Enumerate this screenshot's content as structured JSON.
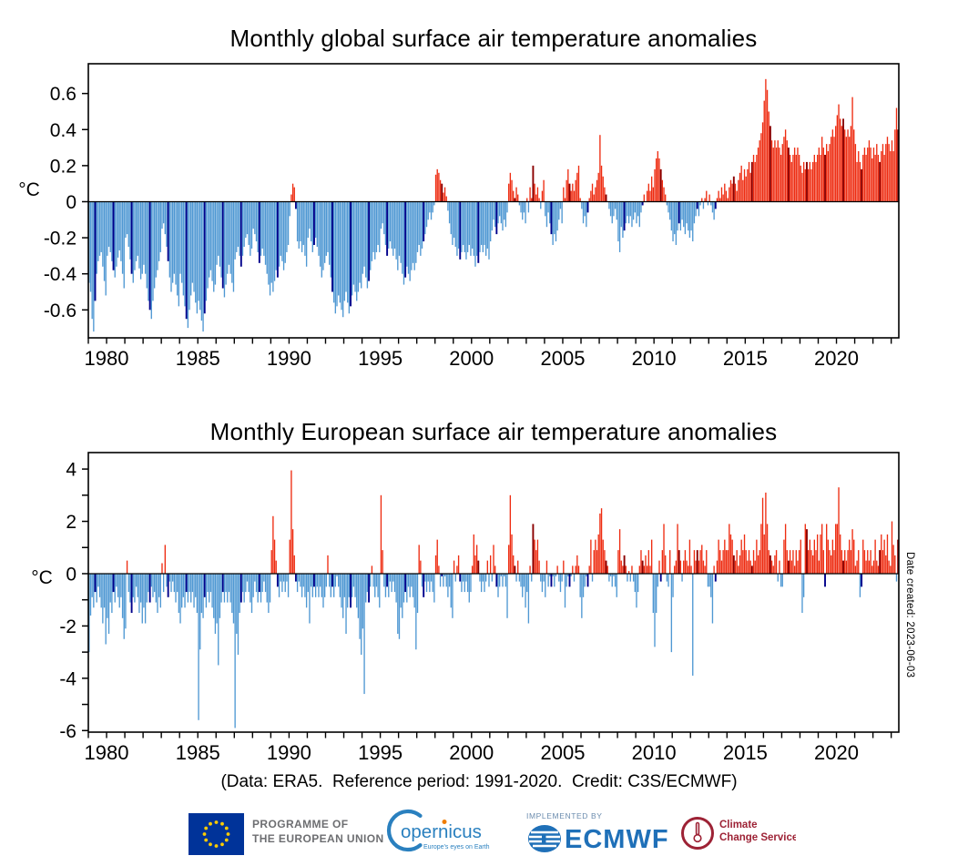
{
  "caption": "(Data: ERA5.  Reference period: 1991-2020.  Credit: C3S/ECMWF)",
  "date_note": "Date created: 2023-06-03",
  "colors": {
    "positive": "#ee2c11",
    "positive_highlight": "#8b0000",
    "negative": "#4f98d3",
    "negative_highlight": "#00008b",
    "axis": "#000000",
    "eu_flag_blue": "#003399",
    "eu_star_yellow": "#ffcc00",
    "logo_text_gray": "#6d6e71",
    "copernicus_blue": "#2a80bf",
    "copernicus_dot_orange": "#ef7d00",
    "ecmwf_blue": "#1f70b8",
    "implemented_by_gray_blue": "#6b8cae",
    "c3s_maroon": "#9d2235"
  },
  "footer": {
    "eu": {
      "line1": "PROGRAMME OF",
      "line2": "THE EUROPEAN UNION"
    },
    "copernicus": {
      "name": "opernicus",
      "tagline": "Europe's eyes on Earth"
    },
    "ecmwf": {
      "implemented_by": "IMPLEMENTED BY",
      "name": "ECMWF"
    },
    "c3s": {
      "line1": "Climate",
      "line2": "Change Service"
    }
  },
  "chart_data": [
    {
      "type": "bar",
      "title": "Monthly global surface air temperature anomalies",
      "ylabel": "°C",
      "x_range": [
        "1979-01",
        "2023-05"
      ],
      "x_start_year": 1979,
      "x_end_year": 2023,
      "xtick_years": [
        1980,
        1985,
        1990,
        1995,
        2000,
        2005,
        2010,
        2015,
        2020
      ],
      "yticks": [
        0.6,
        0.4,
        0.2,
        0,
        -0.2,
        -0.4,
        -0.6
      ],
      "ytick_labels": [
        "0.6",
        "0.4",
        "0.2",
        "0",
        "-0.2",
        "-0.4",
        "-0.6"
      ],
      "yticks_all": [
        0.6,
        0.4,
        0.2,
        0,
        -0.2,
        -0.4,
        -0.6
      ],
      "ylim": [
        -0.755,
        0.765
      ],
      "grid": false,
      "legend": null,
      "highlight_month_index": 4,
      "color_rules": {
        "positive": "red",
        "negative": "light blue",
        "highlight": "May of each year drawn darker (dark red / navy)"
      },
      "values": [
        -0.45,
        -0.5,
        -0.65,
        -0.72,
        -0.55,
        -0.4,
        -0.33,
        -0.3,
        -0.28,
        -0.36,
        -0.44,
        -0.52,
        -0.3,
        -0.25,
        -0.28,
        -0.33,
        -0.38,
        -0.42,
        -0.36,
        -0.31,
        -0.27,
        -0.33,
        -0.4,
        -0.48,
        -0.2,
        -0.18,
        -0.25,
        -0.32,
        -0.4,
        -0.45,
        -0.38,
        -0.33,
        -0.3,
        -0.37,
        -0.43,
        -0.4,
        -0.35,
        -0.4,
        -0.48,
        -0.55,
        -0.6,
        -0.65,
        -0.55,
        -0.48,
        -0.42,
        -0.38,
        -0.33,
        -0.28,
        -0.15,
        -0.12,
        -0.18,
        -0.25,
        -0.33,
        -0.42,
        -0.5,
        -0.45,
        -0.4,
        -0.46,
        -0.52,
        -0.58,
        -0.4,
        -0.45,
        -0.52,
        -0.58,
        -0.65,
        -0.7,
        -0.6,
        -0.52,
        -0.45,
        -0.5,
        -0.56,
        -0.62,
        -0.55,
        -0.6,
        -0.66,
        -0.72,
        -0.62,
        -0.55,
        -0.48,
        -0.42,
        -0.38,
        -0.44,
        -0.5,
        -0.46,
        -0.35,
        -0.3,
        -0.36,
        -0.42,
        -0.48,
        -0.53,
        -0.46,
        -0.4,
        -0.35,
        -0.4,
        -0.45,
        -0.5,
        -0.32,
        -0.28,
        -0.25,
        -0.3,
        -0.36,
        -0.3,
        -0.25,
        -0.2,
        -0.18,
        -0.24,
        -0.3,
        -0.26,
        -0.15,
        -0.18,
        -0.22,
        -0.28,
        -0.34,
        -0.3,
        -0.26,
        -0.3,
        -0.35,
        -0.4,
        -0.46,
        -0.52,
        -0.45,
        -0.5,
        -0.44,
        -0.38,
        -0.42,
        -0.36,
        -0.3,
        -0.33,
        -0.38,
        -0.34,
        -0.28,
        -0.24,
        -0.08,
        0.04,
        0.1,
        0.08,
        -0.04,
        -0.22,
        -0.26,
        -0.22,
        -0.28,
        -0.24,
        -0.3,
        -0.36,
        -0.2,
        -0.15,
        -0.22,
        -0.28,
        -0.24,
        -0.2,
        -0.25,
        -0.3,
        -0.36,
        -0.42,
        -0.38,
        -0.34,
        -0.3,
        -0.28,
        -0.35,
        -0.42,
        -0.5,
        -0.56,
        -0.62,
        -0.58,
        -0.52,
        -0.56,
        -0.6,
        -0.64,
        -0.55,
        -0.5,
        -0.56,
        -0.62,
        -0.58,
        -0.52,
        -0.46,
        -0.5,
        -0.55,
        -0.5,
        -0.45,
        -0.48,
        -0.4,
        -0.36,
        -0.42,
        -0.48,
        -0.44,
        -0.38,
        -0.33,
        -0.28,
        -0.32,
        -0.28,
        -0.24,
        -0.28,
        -0.15,
        -0.12,
        -0.18,
        -0.24,
        -0.3,
        -0.26,
        -0.22,
        -0.26,
        -0.3,
        -0.26,
        -0.32,
        -0.38,
        -0.3,
        -0.34,
        -0.4,
        -0.46,
        -0.42,
        -0.36,
        -0.4,
        -0.44,
        -0.38,
        -0.34,
        -0.38,
        -0.34,
        -0.28,
        -0.24,
        -0.3,
        -0.26,
        -0.22,
        -0.18,
        -0.14,
        -0.1,
        -0.06,
        -0.1,
        -0.06,
        -0.02,
        0.15,
        0.18,
        0.16,
        0.12,
        0.1,
        0.05,
        0.08,
        0.03,
        -0.05,
        -0.12,
        -0.18,
        -0.24,
        -0.2,
        -0.25,
        -0.3,
        -0.26,
        -0.32,
        -0.28,
        -0.24,
        -0.28,
        -0.32,
        -0.28,
        -0.24,
        -0.3,
        -0.26,
        -0.3,
        -0.36,
        -0.3,
        -0.34,
        -0.28,
        -0.24,
        -0.28,
        -0.24,
        -0.3,
        -0.26,
        -0.32,
        -0.22,
        -0.16,
        -0.1,
        -0.14,
        -0.18,
        -0.12,
        -0.08,
        -0.12,
        -0.16,
        -0.1,
        -0.14,
        -0.06,
        0.1,
        0.16,
        0.12,
        0.06,
        0.02,
        0.08,
        0.04,
        -0.02,
        -0.06,
        -0.1,
        -0.06,
        -0.12,
        0.02,
        -0.06,
        0.08,
        0.02,
        0.2,
        0.1,
        0.04,
        0.08,
        0.02,
        -0.04,
        0.06,
        0.12,
        -0.08,
        -0.14,
        -0.06,
        -0.12,
        -0.18,
        -0.24,
        -0.18,
        -0.22,
        -0.16,
        -0.1,
        -0.04,
        -0.12,
        0.08,
        0.02,
        0.12,
        0.18,
        0.1,
        0.06,
        0.1,
        0.06,
        0.12,
        0.16,
        0.2,
        0.02,
        -0.04,
        -0.12,
        -0.08,
        -0.14,
        -0.06,
        0.02,
        0.06,
        0.1,
        0.04,
        0.08,
        0.12,
        0.16,
        0.37,
        0.2,
        0.14,
        0.08,
        0.04,
        0.0,
        -0.04,
        -0.08,
        -0.12,
        -0.08,
        -0.04,
        -0.1,
        -0.22,
        -0.28,
        -0.14,
        -0.2,
        -0.16,
        -0.12,
        -0.08,
        -0.12,
        -0.08,
        -0.14,
        -0.1,
        -0.06,
        -0.12,
        -0.08,
        -0.14,
        -0.06,
        -0.02,
        0.04,
        0.0,
        0.06,
        0.1,
        0.06,
        0.14,
        0.08,
        0.18,
        0.24,
        0.28,
        0.24,
        0.18,
        0.12,
        0.08,
        0.04,
        -0.02,
        -0.06,
        -0.1,
        -0.16,
        -0.22,
        -0.18,
        -0.24,
        -0.16,
        -0.12,
        -0.16,
        -0.1,
        -0.14,
        -0.18,
        -0.12,
        -0.16,
        -0.2,
        -0.16,
        -0.22,
        -0.12,
        -0.08,
        -0.04,
        -0.08,
        -0.02,
        0.02,
        -0.04,
        0.02,
        0.06,
        -0.02,
        0.04,
        -0.02,
        -0.06,
        -0.1,
        -0.04,
        0.02,
        0.06,
        0.02,
        0.08,
        0.04,
        0.1,
        0.06,
        0.02,
        0.08,
        0.12,
        0.1,
        0.14,
        0.1,
        0.06,
        0.12,
        0.16,
        0.2,
        0.12,
        0.18,
        0.14,
        0.18,
        0.22,
        0.16,
        0.22,
        0.26,
        0.22,
        0.26,
        0.3,
        0.34,
        0.38,
        0.44,
        0.56,
        0.68,
        0.62,
        0.5,
        0.42,
        0.34,
        0.3,
        0.34,
        0.3,
        0.34,
        0.3,
        0.26,
        0.32,
        0.36,
        0.4,
        0.34,
        0.3,
        0.26,
        0.22,
        0.26,
        0.3,
        0.26,
        0.3,
        0.26,
        0.2,
        0.16,
        0.22,
        0.18,
        0.22,
        0.18,
        0.22,
        0.18,
        0.22,
        0.26,
        0.22,
        0.26,
        0.3,
        0.26,
        0.36,
        0.3,
        0.26,
        0.32,
        0.28,
        0.32,
        0.36,
        0.4,
        0.36,
        0.42,
        0.48,
        0.54,
        0.46,
        0.42,
        0.46,
        0.4,
        0.36,
        0.4,
        0.36,
        0.42,
        0.58,
        0.4,
        0.32,
        0.22,
        0.28,
        0.22,
        0.18,
        0.26,
        0.3,
        0.26,
        0.3,
        0.34,
        0.3,
        0.24,
        0.3,
        0.26,
        0.32,
        0.26,
        0.22,
        0.28,
        0.32,
        0.26,
        0.32,
        0.36,
        0.32,
        0.28,
        0.34,
        0.28,
        0.4,
        0.52,
        0.4
      ]
    },
    {
      "type": "bar",
      "title": "Monthly European surface air temperature anomalies",
      "ylabel": "°C",
      "x_range": [
        "1979-01",
        "2023-05"
      ],
      "x_start_year": 1979,
      "x_end_year": 2023,
      "xtick_years": [
        1980,
        1985,
        1990,
        1995,
        2000,
        2005,
        2010,
        2015,
        2020
      ],
      "yticks": [
        4,
        2,
        0,
        -2,
        -4,
        -6
      ],
      "ytick_labels": [
        "4",
        "2",
        "0",
        "-2",
        "-4",
        "-6"
      ],
      "yticks_all": [
        4,
        3,
        2,
        1,
        0,
        -1,
        -2,
        -3,
        -4,
        -5,
        -6
      ],
      "ylim": [
        -6.06,
        4.63
      ],
      "grid": false,
      "legend": null,
      "highlight_month_index": 4,
      "color_rules": {
        "positive": "red",
        "negative": "light blue",
        "highlight": "May of each year drawn darker (dark red / navy)"
      },
      "values": [
        -3.0,
        -1.6,
        -0.9,
        -1.3,
        -0.7,
        -1.1,
        -0.5,
        -0.9,
        -1.3,
        -1.9,
        -1.3,
        -2.7,
        -1.7,
        -2.3,
        -1.1,
        -1.5,
        -0.7,
        -1.1,
        -0.5,
        -0.9,
        -1.3,
        -0.9,
        -1.7,
        -2.5,
        -2.1,
        0.5,
        -0.7,
        -1.1,
        -1.5,
        -0.9,
        -1.1,
        -0.5,
        -0.9,
        -1.5,
        -1.1,
        -1.9,
        -1.3,
        -1.9,
        -1.1,
        -0.7,
        -1.1,
        -0.5,
        -0.9,
        -0.7,
        -1.1,
        -1.5,
        -0.9,
        -1.3,
        0.4,
        -0.7,
        1.1,
        -0.5,
        -0.9,
        -0.3,
        -0.7,
        -0.3,
        -0.7,
        -1.1,
        -0.7,
        -1.5,
        -1.9,
        -1.3,
        -0.9,
        -1.3,
        -0.7,
        -1.1,
        -0.7,
        -1.1,
        -0.7,
        -1.3,
        -0.9,
        -1.5,
        -5.6,
        -2.9,
        -1.5,
        -1.7,
        -0.9,
        -1.3,
        -0.7,
        -1.1,
        -0.7,
        -1.3,
        -1.7,
        -2.3,
        -1.9,
        -3.5,
        -1.7,
        -1.1,
        -0.7,
        -1.1,
        -0.7,
        -1.1,
        -0.7,
        -1.1,
        -1.5,
        -1.9,
        -5.9,
        -2.3,
        -3.1,
        -1.5,
        -1.1,
        -0.7,
        -1.1,
        -0.7,
        -0.3,
        -0.7,
        -1.1,
        -1.5,
        -0.9,
        -0.3,
        -0.7,
        -1.1,
        -0.7,
        -1.1,
        -0.7,
        -0.3,
        -0.7,
        -1.1,
        -1.5,
        -1.1,
        0.9,
        2.2,
        1.3,
        0.5,
        -0.5,
        -0.9,
        -0.3,
        -0.7,
        -0.3,
        -0.7,
        -0.3,
        -0.9,
        1.3,
        3.95,
        1.7,
        0.7,
        -0.3,
        -0.7,
        -0.3,
        -0.5,
        -0.9,
        -0.5,
        -0.9,
        -1.3,
        -0.7,
        -1.9,
        -0.5,
        -0.9,
        -0.5,
        -0.9,
        -0.5,
        -0.9,
        -0.5,
        -0.9,
        -1.3,
        -0.9,
        -0.5,
        0.7,
        -0.5,
        -0.9,
        -0.5,
        -0.9,
        -0.5,
        -0.1,
        -0.5,
        -0.9,
        -1.3,
        -1.7,
        -0.9,
        -2.3,
        -1.3,
        -0.9,
        -1.3,
        -0.9,
        -0.5,
        -0.9,
        -1.3,
        -1.7,
        -2.5,
        -3.1,
        -2.1,
        -4.6,
        -1.1,
        -0.7,
        -1.1,
        -0.5,
        0.3,
        -0.5,
        -0.9,
        -0.5,
        -0.9,
        -1.3,
        3.0,
        0.9,
        -0.5,
        -0.9,
        -0.5,
        -0.9,
        -0.3,
        -0.7,
        -0.3,
        -0.7,
        -1.1,
        -2.3,
        -2.5,
        -1.3,
        -1.7,
        -1.1,
        -0.7,
        -1.1,
        -0.5,
        -0.9,
        -0.5,
        -0.9,
        -1.3,
        -2.9,
        -1.5,
        1.1,
        0.5,
        -0.5,
        -0.9,
        -0.3,
        -0.7,
        -0.3,
        -0.7,
        -0.3,
        -0.7,
        -1.1,
        0.7,
        1.3,
        0.3,
        -0.5,
        -0.1,
        -0.5,
        -0.1,
        -0.5,
        -0.9,
        -0.5,
        -1.3,
        -1.7,
        0.5,
        -0.3,
        0.3,
        0.7,
        -0.3,
        -0.7,
        -0.3,
        -0.7,
        -0.3,
        -0.7,
        -1.1,
        -0.7,
        0.3,
        1.5,
        0.7,
        1.1,
        0.5,
        -0.3,
        -0.7,
        -0.3,
        -0.7,
        -0.3,
        0.5,
        -0.5,
        0.7,
        -0.3,
        1.1,
        0.3,
        -0.5,
        -0.9,
        -0.5,
        -0.1,
        -0.5,
        -0.1,
        -0.5,
        -1.7,
        1.1,
        3.0,
        1.5,
        0.7,
        0.3,
        -0.3,
        0.5,
        -0.3,
        -0.5,
        -0.9,
        -0.5,
        -1.3,
        -0.7,
        -1.9,
        0.3,
        -0.3,
        1.9,
        1.3,
        0.9,
        1.3,
        0.5,
        -0.3,
        -0.7,
        -0.3,
        -0.9,
        0.5,
        -0.5,
        -0.1,
        -0.5,
        -0.1,
        -0.5,
        -0.1,
        0.3,
        -0.3,
        -0.7,
        -0.3,
        0.5,
        -1.3,
        -0.5,
        -0.1,
        -0.5,
        -0.1,
        0.3,
        -0.3,
        0.3,
        0.7,
        0.3,
        -0.9,
        -1.7,
        -0.9,
        -0.5,
        -0.1,
        -0.5,
        0.3,
        1.3,
        -0.3,
        0.9,
        1.3,
        0.9,
        1.5,
        2.3,
        2.5,
        1.3,
        0.9,
        0.5,
        0.3,
        -0.3,
        -0.1,
        -0.5,
        -0.1,
        -0.5,
        -0.9,
        0.9,
        1.7,
        0.5,
        0.3,
        0.7,
        0.3,
        -0.3,
        0.1,
        -0.3,
        0.3,
        -0.3,
        -0.7,
        -1.3,
        -0.7,
        0.3,
        0.9,
        0.5,
        0.3,
        0.7,
        0.3,
        0.9,
        0.3,
        1.3,
        -1.5,
        -2.8,
        -1.5,
        -0.5,
        0.5,
        -0.3,
        0.9,
        1.9,
        0.7,
        -0.3,
        -0.5,
        0.9,
        -3.0,
        -0.9,
        0.3,
        0.5,
        1.9,
        0.9,
        0.5,
        -0.3,
        0.5,
        0.9,
        0.5,
        0.3,
        1.3,
        0.3,
        -3.9,
        0.9,
        0.5,
        0.9,
        0.5,
        0.9,
        1.1,
        0.5,
        0.3,
        0.9,
        -0.5,
        -0.5,
        -0.9,
        -1.9,
        0.3,
        -0.3,
        0.5,
        1.3,
        0.9,
        0.5,
        0.9,
        1.3,
        0.9,
        0.9,
        1.9,
        1.5,
        1.3,
        0.7,
        0.5,
        0.9,
        0.3,
        0.7,
        1.3,
        0.9,
        1.5,
        0.9,
        0.5,
        0.9,
        0.5,
        0.3,
        0.9,
        0.5,
        1.3,
        0.7,
        0.9,
        1.9,
        2.9,
        1.5,
        3.1,
        1.9,
        0.9,
        0.7,
        0.5,
        0.3,
        0.7,
        0.9,
        -0.3,
        0.5,
        -0.5,
        -0.5,
        1.3,
        1.9,
        0.9,
        0.5,
        0.9,
        0.5,
        0.9,
        0.3,
        0.9,
        0.5,
        0.9,
        1.3,
        -1.5,
        -0.9,
        1.9,
        1.7,
        0.9,
        1.3,
        0.9,
        0.7,
        1.3,
        0.9,
        1.5,
        0.5,
        1.5,
        1.9,
        0.9,
        -0.5,
        1.9,
        1.3,
        0.9,
        0.7,
        1.3,
        0.9,
        1.9,
        1.9,
        3.3,
        1.5,
        0.9,
        0.5,
        0.9,
        0.5,
        0.9,
        1.3,
        0.9,
        1.7,
        1.3,
        0.3,
        0.5,
        0.9,
        -0.9,
        -0.5,
        1.3,
        0.9,
        0.5,
        0.9,
        0.5,
        0.9,
        0.3,
        0.5,
        1.3,
        0.5,
        0.3,
        0.9,
        1.5,
        0.9,
        1.3,
        0.7,
        1.5,
        0.5,
        0.3,
        2.0,
        1.1,
        0.7,
        -0.3,
        1.3
      ]
    }
  ]
}
